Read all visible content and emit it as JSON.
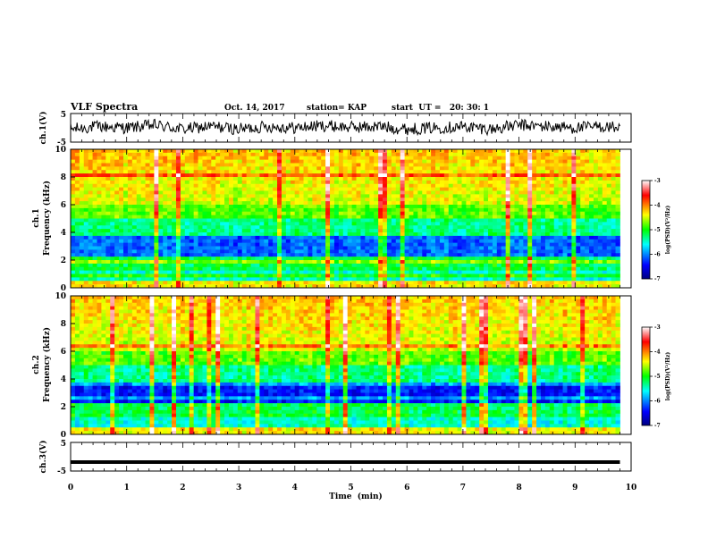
{
  "header": {
    "title": "VLF Spectra",
    "date": "Oct. 14, 2017",
    "station": "station= KAP",
    "start": "start  UT =   20: 30: 1"
  },
  "colors": {
    "spectrogram_scale": [
      "#000080",
      "#0000ff",
      "#00ffff",
      "#00ff00",
      "#ffff00",
      "#ff0000",
      "#ffffff"
    ],
    "trace": "#000000"
  },
  "chart_data": [
    {
      "type": "line",
      "panel": "ch1-waveform",
      "ylabel": "ch.1(V)",
      "ylim": [
        -5,
        5
      ],
      "yticks": [
        "5",
        "-5"
      ],
      "x": [
        0,
        0.5,
        1,
        1.5,
        2,
        2.5,
        3,
        3.5,
        4,
        4.5,
        5,
        5.5,
        6,
        6.5,
        7,
        7.5,
        8,
        8.5,
        9,
        9.5,
        9.8
      ],
      "values": [
        -0.5,
        0.5,
        0.0,
        1.0,
        -0.5,
        0.5,
        -0.5,
        0.5,
        0.0,
        0.8,
        0.2,
        0.5,
        -0.5,
        0.0,
        0.5,
        -0.5,
        1.0,
        0.5,
        0.0,
        0.5,
        0.0
      ]
    },
    {
      "type": "heatmap",
      "panel": "ch1-spectrogram",
      "ylabel": "ch.1\nFrequency  (kHz)",
      "ylim": [
        0,
        10
      ],
      "yticks": [
        "0",
        "2",
        "4",
        "6",
        "8",
        "10"
      ],
      "xlim": [
        0,
        10
      ],
      "colorbar": {
        "label": "log(PSD)(V²/Hz)",
        "range": [
          -7,
          -3
        ],
        "ticks": [
          "-3",
          "-4",
          "-5",
          "-6",
          "-7"
        ]
      }
    },
    {
      "type": "heatmap",
      "panel": "ch2-spectrogram",
      "ylabel": "ch.2\nFrequency  (kHz)",
      "ylim": [
        0,
        10
      ],
      "yticks": [
        "0",
        "2",
        "4",
        "6",
        "8",
        "10"
      ],
      "xlim": [
        0,
        10
      ],
      "colorbar": {
        "label": "log(PSD)(V²/Hz)",
        "range": [
          -7,
          -3
        ],
        "ticks": [
          "-3",
          "-4",
          "-5",
          "-6",
          "-7"
        ]
      }
    },
    {
      "type": "line",
      "panel": "ch3-waveform",
      "ylabel": "ch.3(V)",
      "ylim": [
        -5,
        5
      ],
      "yticks": [
        "5",
        "-5"
      ],
      "x": [
        0,
        9.8
      ],
      "values": [
        -2,
        -2
      ]
    }
  ],
  "xaxis": {
    "label": "Time  (min)",
    "xlim": [
      0,
      10
    ],
    "ticks": [
      "0",
      "1",
      "2",
      "3",
      "4",
      "5",
      "6",
      "7",
      "8",
      "9",
      "10"
    ]
  }
}
